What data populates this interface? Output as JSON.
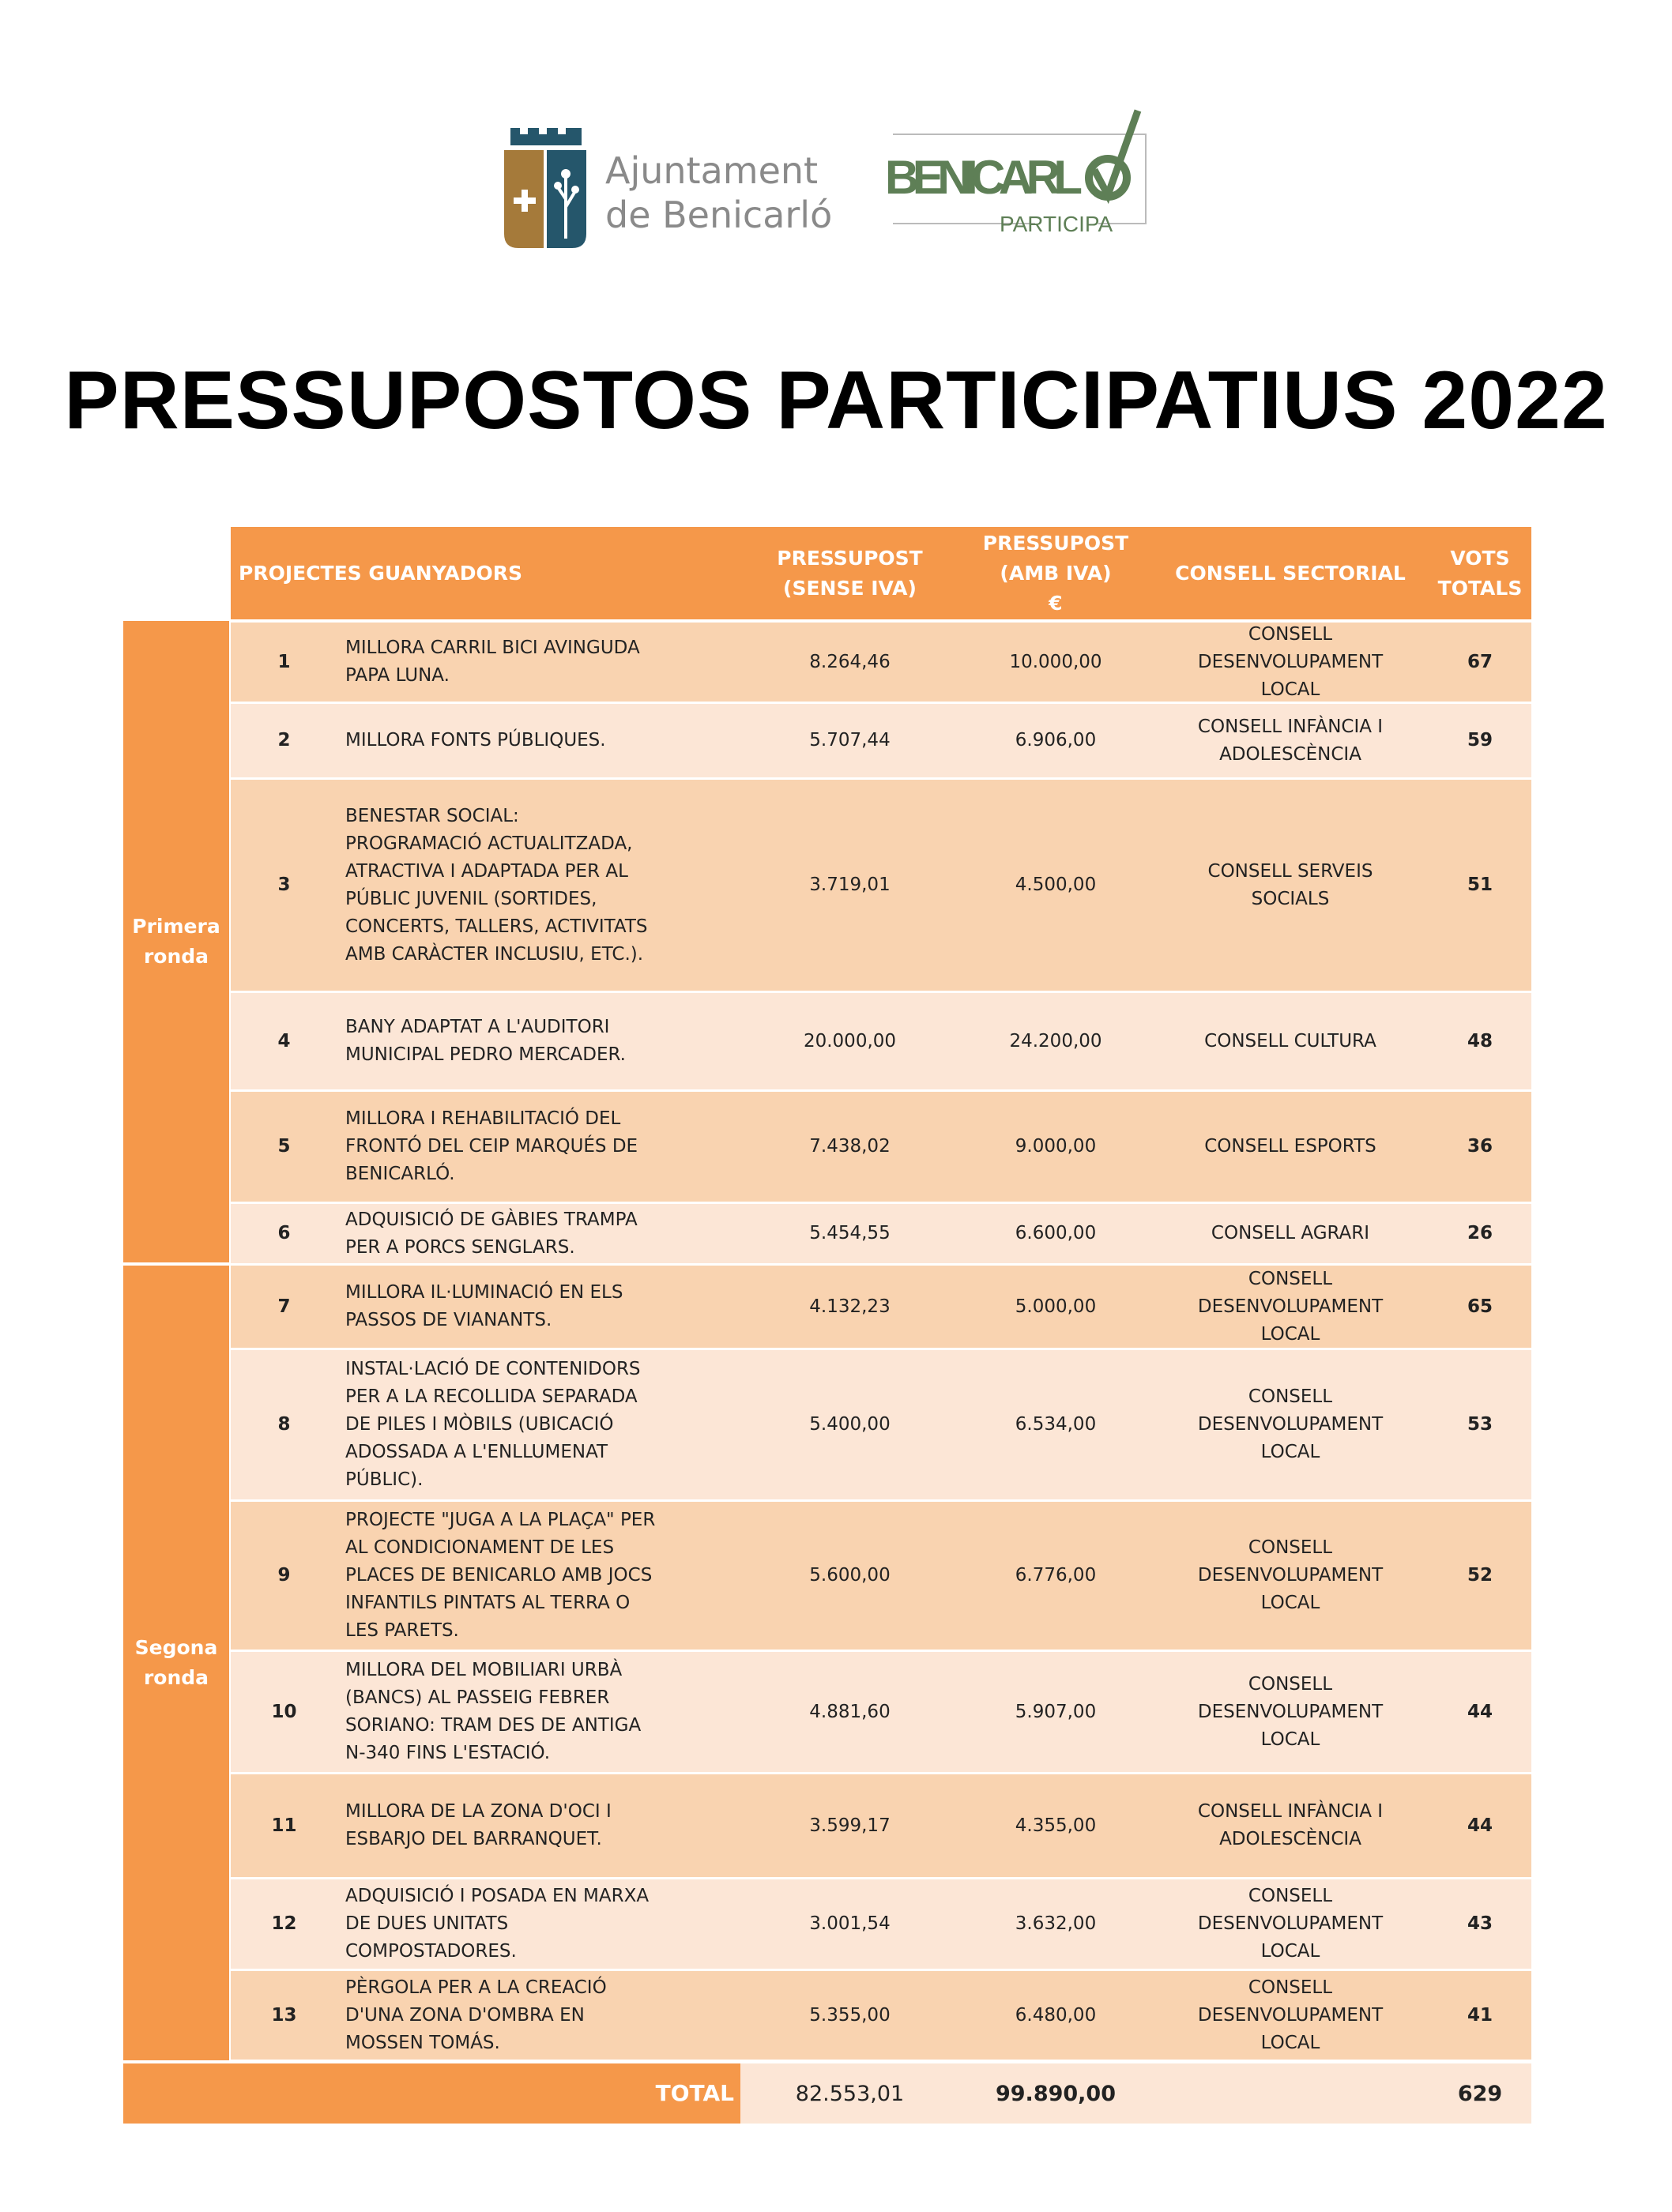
{
  "logos": {
    "ajuntament": "Ajuntament de Benicarló",
    "participa": "BENICARLÓ PARTICIPA"
  },
  "title": "PRESSUPOSTOS PARTICIPATIUS 2022",
  "colors": {
    "header": "#f5984a",
    "row_dark": "#f9d3b0",
    "row_light": "#fce6d6"
  },
  "table": {
    "headers": {
      "project": "PROJECTES GUANYADORS",
      "sense_iva": "PRESSUPOST\n(SENSE IVA)",
      "amb_iva": "PRESSUPOST\n(AMB IVA)\n€",
      "consell": "CONSELL SECTORIAL",
      "vots": "VOTS\nTOTALS"
    },
    "groups": [
      {
        "label": "Primera\nronda"
      },
      {
        "label": "Segona\nronda"
      }
    ],
    "rows": [
      {
        "num": "1",
        "project": "MILLORA CARRIL BICI AVINGUDA\nPAPA LUNA.",
        "sense_iva": "8.264,46",
        "amb_iva": "10.000,00",
        "consell": "CONSELL\nDESENVOLUPAMENT\nLOCAL",
        "vots": "67"
      },
      {
        "num": "2",
        "project": "MILLORA FONTS PÚBLIQUES.",
        "sense_iva": "5.707,44",
        "amb_iva": "6.906,00",
        "consell": "CONSELL INFÀNCIA I\nADOLESCÈNCIA",
        "vots": "59"
      },
      {
        "num": "3",
        "project": "BENESTAR SOCIAL:\nPROGRAMACIÓ ACTUALITZADA,\nATRACTIVA I ADAPTADA PER AL\nPÚBLIC JUVENIL (SORTIDES,\nCONCERTS, TALLERS, ACTIVITATS\nAMB CARÀCTER INCLUSIU, ETC.).",
        "sense_iva": "3.719,01",
        "amb_iva": "4.500,00",
        "consell": "CONSELL SERVEIS\nSOCIALS",
        "vots": "51"
      },
      {
        "num": "4",
        "project": "BANY ADAPTAT A L'AUDITORI\nMUNICIPAL PEDRO MERCADER.",
        "sense_iva": "20.000,00",
        "amb_iva": "24.200,00",
        "consell": "CONSELL CULTURA",
        "vots": "48"
      },
      {
        "num": "5",
        "project": "MILLORA I REHABILITACIÓ DEL\nFRONTÓ DEL CEIP MARQUÉS DE\nBENICARLÓ.",
        "sense_iva": "7.438,02",
        "amb_iva": "9.000,00",
        "consell": "CONSELL ESPORTS",
        "vots": "36"
      },
      {
        "num": "6",
        "project": "ADQUISICIÓ DE GÀBIES TRAMPA\nPER A PORCS SENGLARS.",
        "sense_iva": "5.454,55",
        "amb_iva": "6.600,00",
        "consell": "CONSELL AGRARI",
        "vots": "26"
      },
      {
        "num": "7",
        "project": "MILLORA IL·LUMINACIÓ EN ELS\nPASSOS DE VIANANTS.",
        "sense_iva": "4.132,23",
        "amb_iva": "5.000,00",
        "consell": "CONSELL\nDESENVOLUPAMENT\nLOCAL",
        "vots": "65"
      },
      {
        "num": "8",
        "project": "INSTAL·LACIÓ DE CONTENIDORS\nPER A LA RECOLLIDA SEPARADA\nDE PILES I MÒBILS (UBICACIÓ\nADOSSADA A L'ENLLUMENAT\nPÚBLIC).",
        "sense_iva": "5.400,00",
        "amb_iva": "6.534,00",
        "consell": "CONSELL\nDESENVOLUPAMENT\nLOCAL",
        "vots": "53"
      },
      {
        "num": "9",
        "project": "PROJECTE \"JUGA A LA PLAÇA\" PER\nAL CONDICIONAMENT DE LES\nPLACES DE BENICARLO AMB JOCS\nINFANTILS PINTATS AL TERRA O\nLES PARETS.",
        "sense_iva": "5.600,00",
        "amb_iva": "6.776,00",
        "consell": "CONSELL\nDESENVOLUPAMENT\nLOCAL",
        "vots": "52"
      },
      {
        "num": "10",
        "project": "MILLORA DEL MOBILIARI URBÀ\n(BANCS) AL PASSEIG FEBRER\nSORIANO: TRAM DES DE ANTIGA\nN-340 FINS L'ESTACIÓ.",
        "sense_iva": "4.881,60",
        "amb_iva": "5.907,00",
        "consell": "CONSELL\nDESENVOLUPAMENT\nLOCAL",
        "vots": "44"
      },
      {
        "num": "11",
        "project": "MILLORA DE LA ZONA D'OCI I\nESBARJO DEL BARRANQUET.",
        "sense_iva": "3.599,17",
        "amb_iva": "4.355,00",
        "consell": "CONSELL INFÀNCIA I\nADOLESCÈNCIA",
        "vots": "44"
      },
      {
        "num": "12",
        "project": "ADQUISICIÓ I POSADA EN MARXA\nDE DUES UNITATS\nCOMPOSTADORES.",
        "sense_iva": "3.001,54",
        "amb_iva": "3.632,00",
        "consell": "CONSELL\nDESENVOLUPAMENT\nLOCAL",
        "vots": "43"
      },
      {
        "num": "13",
        "project": "PÈRGOLA PER A LA CREACIÓ\nD'UNA ZONA D'OMBRA EN\nMOSSEN TOMÁS.",
        "sense_iva": "5.355,00",
        "amb_iva": "6.480,00",
        "consell": "CONSELL\nDESENVOLUPAMENT\nLOCAL",
        "vots": "41"
      }
    ],
    "total": {
      "label": "TOTAL",
      "sense_iva": "82.553,01",
      "amb_iva": "99.890,00",
      "vots": "629"
    }
  }
}
